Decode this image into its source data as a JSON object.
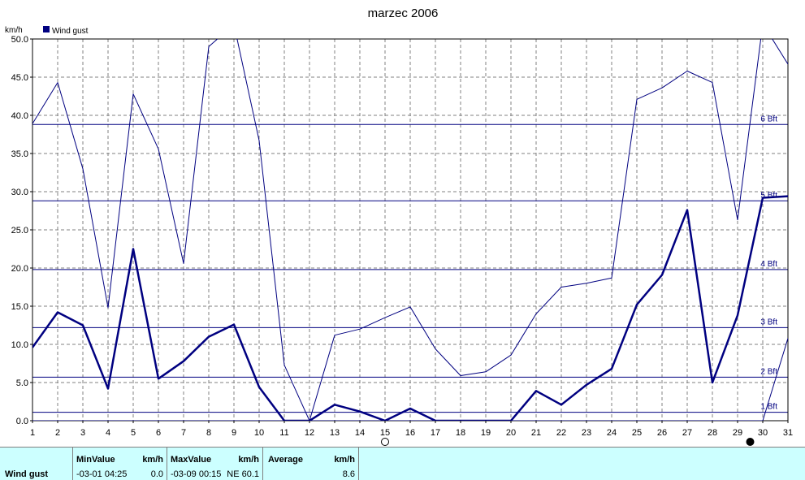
{
  "chart_data": {
    "type": "line",
    "title": "marzec 2006",
    "ylabel": "km/h",
    "ylim": [
      0,
      50
    ],
    "yticks": [
      "0.0",
      "5.0",
      "10.0",
      "15.0",
      "20.0",
      "25.0",
      "30.0",
      "35.0",
      "40.0",
      "45.0",
      "50.0"
    ],
    "x": [
      1,
      2,
      3,
      4,
      5,
      6,
      7,
      8,
      9,
      10,
      11,
      12,
      13,
      14,
      15,
      16,
      17,
      18,
      19,
      20,
      21,
      22,
      23,
      24,
      25,
      26,
      27,
      28,
      29,
      30,
      31
    ],
    "legend": {
      "label": "Wind gust",
      "color": "#000080",
      "placement": "top-left"
    },
    "series": [
      {
        "name": "Wind gust",
        "style": "max-thin",
        "color": "#000080",
        "values": [
          38.9,
          44.3,
          33.0,
          14.8,
          42.8,
          35.6,
          20.6,
          49.0,
          51.9,
          36.7,
          7.3,
          0.0,
          11.2,
          12.0,
          13.5,
          14.9,
          9.4,
          5.9,
          6.4,
          8.6,
          14.0,
          17.5,
          18.0,
          18.7,
          42.1,
          43.6,
          45.8,
          44.3,
          26.3,
          52.0,
          46.7
        ]
      },
      {
        "style": "average-thick",
        "color": "#000080",
        "values": [
          9.6,
          14.2,
          12.5,
          4.2,
          22.5,
          5.5,
          7.8,
          11.0,
          12.6,
          4.4,
          0.0,
          0.0,
          2.1,
          1.2,
          0.0,
          1.6,
          0.0,
          0.0,
          0.0,
          0.0,
          3.9,
          2.1,
          4.7,
          6.8,
          15.2,
          19.1,
          27.6,
          5.0,
          13.8,
          29.2,
          29.4
        ]
      },
      {
        "style": "min-thin",
        "color": "#000080",
        "values": [
          0,
          0,
          0,
          0,
          0,
          0,
          0,
          0,
          0,
          0,
          0,
          0,
          0,
          0,
          0,
          0,
          0,
          0,
          0,
          0,
          0,
          0,
          0,
          0,
          0,
          0,
          0,
          0,
          0,
          0,
          10.8
        ]
      }
    ],
    "beaufort_lines": [
      {
        "label": "1 Bft",
        "value": 1.1
      },
      {
        "label": "2 Bft",
        "value": 5.7
      },
      {
        "label": "3 Bft",
        "value": 12.2
      },
      {
        "label": "4 Bft",
        "value": 19.8
      },
      {
        "label": "5 Bft",
        "value": 28.8
      },
      {
        "label": "6 Bft",
        "value": 38.8
      }
    ],
    "moon_phases": [
      {
        "day": 15,
        "phase": "full"
      },
      {
        "day": 29.5,
        "phase": "new"
      }
    ],
    "grid": true
  },
  "summary": {
    "row_label": "Wind gust",
    "min": {
      "header": "MinValue",
      "unit": "km/h",
      "time": "-03-01  04:25",
      "value": "0.0"
    },
    "max": {
      "header": "MaxValue",
      "unit": "km/h",
      "time": "-03-09  00:15",
      "value": "NE 60.1"
    },
    "avg": {
      "header": "Average",
      "unit": "km/h",
      "value": "8.6"
    }
  }
}
